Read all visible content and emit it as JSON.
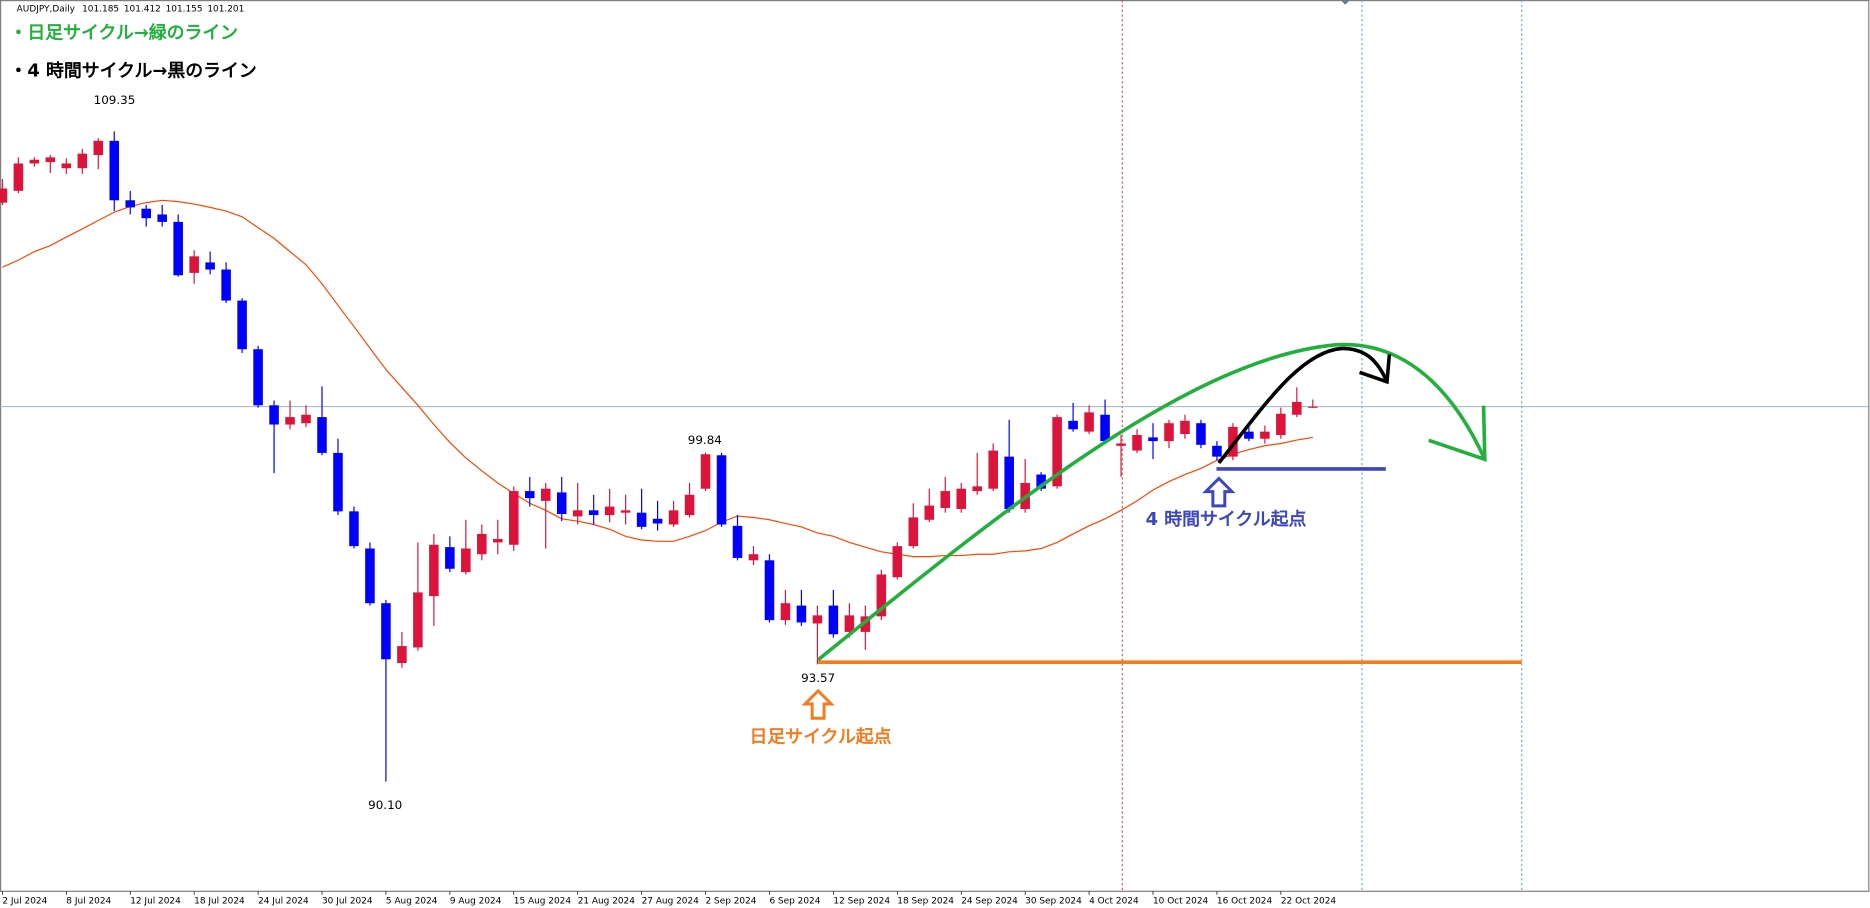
{
  "header": {
    "symbol": "AUDJPY,Daily",
    "ohlc": [
      101.185,
      101.412,
      101.155,
      101.201
    ]
  },
  "chart_data": {
    "type": "candlestick",
    "categories": [
      "2 Jul 2024",
      null,
      null,
      null,
      "8 Jul 2024",
      null,
      null,
      null,
      "12 Jul 2024",
      null,
      null,
      null,
      "18 Jul 2024",
      null,
      null,
      null,
      "24 Jul 2024",
      null,
      null,
      null,
      "30 Jul 2024",
      null,
      null,
      null,
      "5 Aug 2024",
      null,
      null,
      null,
      "9 Aug 2024",
      null,
      null,
      null,
      "15 Aug 2024",
      null,
      null,
      null,
      "21 Aug 2024",
      null,
      null,
      null,
      "27 Aug 2024",
      null,
      null,
      null,
      "2 Sep 2024",
      null,
      null,
      null,
      "6 Sep 2024",
      null,
      null,
      null,
      "12 Sep 2024",
      null,
      null,
      null,
      "18 Sep 2024",
      null,
      null,
      null,
      "24 Sep 2024",
      null,
      null,
      null,
      "30 Sep 2024",
      null,
      null,
      null,
      "4 Oct 2024",
      null,
      null,
      null,
      "10 Oct 2024",
      null,
      null,
      null,
      "16 Oct 2024",
      null,
      null,
      null,
      "22 Oct 2024",
      null,
      null
    ],
    "open": [
      107.24,
      107.59,
      108.4,
      108.44,
      108.26,
      108.26,
      108.65,
      109.07,
      107.31,
      107.06,
      106.89,
      106.67,
      105.16,
      105.47,
      105.26,
      104.34,
      102.9,
      101.24,
      100.67,
      100.71,
      100.89,
      99.83,
      98.1,
      97.0,
      95.38,
      93.61,
      94.07,
      95.59,
      97.04,
      96.3,
      96.83,
      97.18,
      97.11,
      98.7,
      98.41,
      98.66,
      97.95,
      98.13,
      97.99,
      98.06,
      98.06,
      97.88,
      97.71,
      97.99,
      98.77,
      99.76,
      97.67,
      96.65,
      96.65,
      94.88,
      95.31,
      94.78,
      95.31,
      94.53,
      94.53,
      94.99,
      96.15,
      97.07,
      97.85,
      98.2,
      98.17,
      98.7,
      98.77,
      99.72,
      98.17,
      99.19,
      98.84,
      100.78,
      100.46,
      100.96,
      100.04,
      99.9,
      100.29,
      100.18,
      100.39,
      100.71,
      100.04,
      99.72,
      100.46,
      100.25,
      100.36,
      100.96,
      101.185
    ],
    "high": [
      107.94,
      108.58,
      108.58,
      108.65,
      108.55,
      108.83,
      109.15,
      109.35,
      107.59,
      107.17,
      107.17,
      106.89,
      105.83,
      105.79,
      105.47,
      104.41,
      103.0,
      101.38,
      101.38,
      101.24,
      101.8,
      100.25,
      98.24,
      97.18,
      95.48,
      94.53,
      97.18,
      97.43,
      97.36,
      97.85,
      97.71,
      97.85,
      98.84,
      99.12,
      98.94,
      99.12,
      98.94,
      98.59,
      98.77,
      98.59,
      98.77,
      98.41,
      98.41,
      98.94,
      99.84,
      99.83,
      97.99,
      97.07,
      96.83,
      95.77,
      95.77,
      95.31,
      95.77,
      95.38,
      95.31,
      96.37,
      97.18,
      98.34,
      98.77,
      99.12,
      98.94,
      99.83,
      100.11,
      100.81,
      99.65,
      99.26,
      100.96,
      101.31,
      101.24,
      101.41,
      100.36,
      100.53,
      100.71,
      100.81,
      100.96,
      100.81,
      100.18,
      100.71,
      100.71,
      100.64,
      101.17,
      101.77,
      101.412
    ],
    "low": [
      107.17,
      107.52,
      108.3,
      108.12,
      108.09,
      108.09,
      108.23,
      106.99,
      106.89,
      106.53,
      106.53,
      105.05,
      104.84,
      105.12,
      104.27,
      102.79,
      101.17,
      99.23,
      100.53,
      100.6,
      99.76,
      97.99,
      97.0,
      95.31,
      90.1,
      93.47,
      93.97,
      94.71,
      96.3,
      96.23,
      96.65,
      96.83,
      96.93,
      98.24,
      97.0,
      97.81,
      97.71,
      97.71,
      97.78,
      97.71,
      97.57,
      97.53,
      97.64,
      97.92,
      98.7,
      97.64,
      96.65,
      96.51,
      94.81,
      94.74,
      94.71,
      93.57,
      94.36,
      94.36,
      94.0,
      94.88,
      96.08,
      97.0,
      97.78,
      98.06,
      98.06,
      98.59,
      98.7,
      98.06,
      98.06,
      98.7,
      98.77,
      100.46,
      100.39,
      100.11,
      99.12,
      99.83,
      99.65,
      99.97,
      100.25,
      99.97,
      99.61,
      99.61,
      100.18,
      100.11,
      100.25,
      100.89,
      101.155
    ],
    "close": [
      107.66,
      108.4,
      108.51,
      108.58,
      108.4,
      108.69,
      109.07,
      107.31,
      107.1,
      106.78,
      106.67,
      105.09,
      105.65,
      105.26,
      104.34,
      102.9,
      101.24,
      100.67,
      100.89,
      100.96,
      99.83,
      98.1,
      97.07,
      95.38,
      93.72,
      94.11,
      95.7,
      97.11,
      96.4,
      97.0,
      97.43,
      97.28,
      98.7,
      98.49,
      98.77,
      98.02,
      98.13,
      97.99,
      98.24,
      98.13,
      97.64,
      97.74,
      98.13,
      98.59,
      99.79,
      97.71,
      96.72,
      96.83,
      94.88,
      95.38,
      94.81,
      95.02,
      94.46,
      95.02,
      94.99,
      96.23,
      97.07,
      97.92,
      98.27,
      98.7,
      98.77,
      98.84,
      99.9,
      98.17,
      98.94,
      98.77,
      100.89,
      100.53,
      101.03,
      100.18,
      100.11,
      100.36,
      100.18,
      100.71,
      100.78,
      100.07,
      99.72,
      100.6,
      100.25,
      100.46,
      100.99,
      101.34,
      101.201
    ],
    "up_color": "#dc143c",
    "down_color": "#0000ff",
    "ma": {
      "color": "#ff4500",
      "values": [
        105.33,
        105.54,
        105.79,
        105.97,
        106.22,
        106.46,
        106.71,
        106.96,
        107.13,
        107.24,
        107.31,
        107.27,
        107.2,
        107.1,
        106.99,
        106.82,
        106.5,
        106.18,
        105.79,
        105.4,
        104.84,
        104.2,
        103.57,
        102.93,
        102.3,
        101.77,
        101.24,
        100.67,
        100.14,
        99.68,
        99.3,
        98.94,
        98.63,
        98.34,
        98.13,
        97.88,
        97.81,
        97.71,
        97.57,
        97.36,
        97.25,
        97.21,
        97.21,
        97.36,
        97.53,
        97.78,
        97.96,
        97.92,
        97.85,
        97.74,
        97.64,
        97.46,
        97.36,
        97.18,
        97.04,
        96.9,
        96.83,
        96.76,
        96.76,
        96.79,
        96.79,
        96.83,
        96.83,
        96.9,
        96.93,
        97.0,
        97.18,
        97.43,
        97.67,
        97.88,
        98.13,
        98.41,
        98.73,
        98.98,
        99.19,
        99.37,
        99.61,
        99.79,
        99.93,
        100.04,
        100.11,
        100.21,
        100.29
      ]
    },
    "ylim": [
      86.85,
      113.24
    ],
    "grid": false,
    "price_line_color": "#9fb3c8"
  },
  "annotations": {
    "notes": [
      "・日足サイクル→緑のライン",
      "・4 時間サイクル→黒のライン"
    ],
    "price_labels": [
      109.35,
      99.84,
      93.57,
      {
        "value": 90.1,
        "label": "90.10"
      }
    ],
    "callouts": [
      "日足サイクル起点",
      "4 時間サイクル起点"
    ]
  }
}
